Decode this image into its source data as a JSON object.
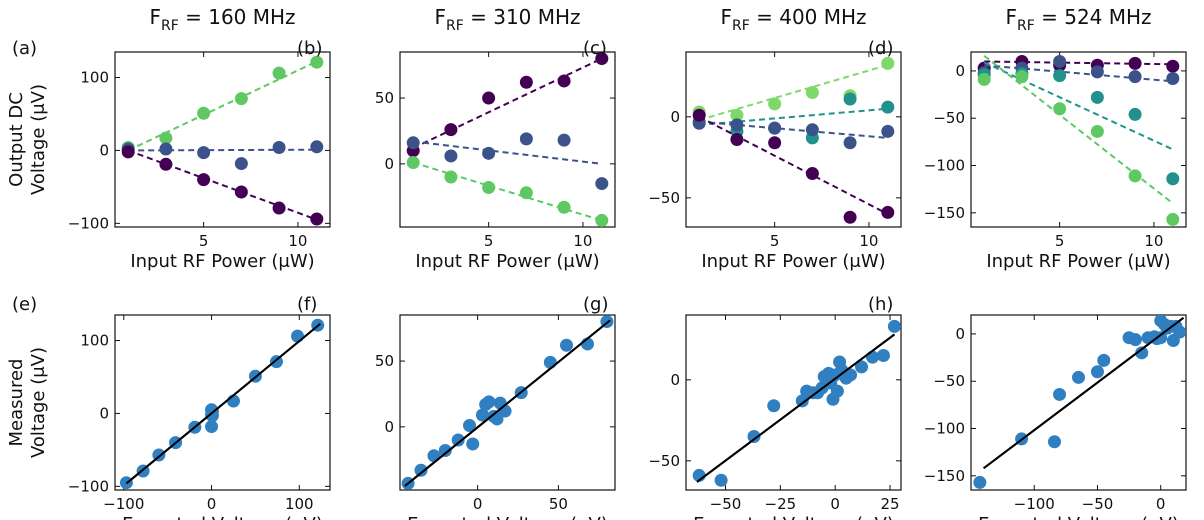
{
  "figure": {
    "colors": {
      "purple": "#440154",
      "navy": "#3b528b",
      "teal": "#21918c",
      "green": "#5ec962",
      "lime": "#7fd86a",
      "scatter": "#2f7fc1",
      "fit": "#000000"
    }
  },
  "chart_data": [
    {
      "type": "scatter",
      "panel": "(a)",
      "title_main": "F",
      "title_sub": "RF",
      "title_rest": " = 160 MHz",
      "xlabel": "Input RF Power (μW)",
      "ylabel_lines": [
        "Output DC",
        "Voltage (μV)"
      ],
      "xlim": [
        0.3,
        11.7
      ],
      "ylim": [
        -105,
        135
      ],
      "xticks": [
        5,
        10
      ],
      "xtick_labels": [
        "5",
        "10"
      ],
      "yticks": [
        -100,
        0,
        100
      ],
      "ytick_labels": [
        "−100",
        "0",
        "100"
      ],
      "x": [
        1,
        3,
        5,
        7,
        9,
        11
      ],
      "series": [
        {
          "color": "#5ec962",
          "values": [
            4,
            17,
            51,
            71,
            106,
            121
          ],
          "fit": [
            [
              1,
              0
            ],
            [
              11,
              122
            ]
          ]
        },
        {
          "color": "#3b528b",
          "values": [
            2,
            2,
            -3,
            -18,
            4,
            5
          ],
          "fit": [
            [
              1,
              0
            ],
            [
              11,
              1
            ]
          ]
        },
        {
          "color": "#440154",
          "values": [
            -2,
            -19,
            -40,
            -57,
            -79,
            -94
          ],
          "fit": [
            [
              1,
              0
            ],
            [
              11,
              -95
            ]
          ]
        }
      ]
    },
    {
      "type": "scatter",
      "panel": "(b)",
      "title_main": "F",
      "title_sub": "RF",
      "title_rest": " = 310 MHz",
      "xlabel": "Input RF Power (μW)",
      "ylabel_lines": [],
      "xlim": [
        0.3,
        11.7
      ],
      "ylim": [
        -48,
        85
      ],
      "xticks": [
        5,
        10
      ],
      "xtick_labels": [
        "5",
        "10"
      ],
      "yticks": [
        0,
        50
      ],
      "ytick_labels": [
        "0",
        "50"
      ],
      "x": [
        1,
        3,
        5,
        7,
        9,
        11
      ],
      "series": [
        {
          "color": "#440154",
          "values": [
            10,
            26,
            50,
            62,
            63,
            80
          ],
          "fit": [
            [
              1,
              12
            ],
            [
              11,
              80
            ]
          ]
        },
        {
          "color": "#3b528b",
          "values": [
            16,
            6,
            8,
            19,
            18,
            -15
          ],
          "fit": [
            [
              1,
              17
            ],
            [
              11,
              0
            ]
          ]
        },
        {
          "color": "#5ec962",
          "values": [
            1,
            -10,
            -18,
            -22,
            -33,
            -43
          ],
          "fit": [
            [
              1,
              1
            ],
            [
              11,
              -43
            ]
          ]
        }
      ]
    },
    {
      "type": "scatter",
      "panel": "(c)",
      "title_main": "F",
      "title_sub": "RF",
      "title_rest": " = 400 MHz",
      "xlabel": "Input RF Power (μW)",
      "ylabel_lines": [],
      "xlim": [
        0.3,
        11.7
      ],
      "ylim": [
        -68,
        40
      ],
      "xticks": [
        5,
        10
      ],
      "xtick_labels": [
        "5",
        "10"
      ],
      "yticks": [
        -50,
        0
      ],
      "ytick_labels": [
        "−50",
        "0"
      ],
      "x": [
        1,
        3,
        5,
        7,
        9,
        11
      ],
      "series": [
        {
          "color": "#7fd86a",
          "values": [
            3,
            1,
            8,
            15,
            13,
            33
          ],
          "fit": [
            [
              1,
              -2
            ],
            [
              11,
              32
            ]
          ]
        },
        {
          "color": "#21918c",
          "values": [
            -3,
            -9,
            -7,
            -13,
            11,
            6
          ],
          "fit": [
            [
              1,
              -5
            ],
            [
              11,
              5
            ]
          ]
        },
        {
          "color": "#3b528b",
          "values": [
            -4,
            -5,
            -7,
            -8,
            -16,
            -9
          ],
          "fit": [
            [
              1,
              -3
            ],
            [
              11,
              -13
            ]
          ]
        },
        {
          "color": "#440154",
          "values": [
            1,
            -14,
            -16,
            -35,
            -62,
            -59
          ],
          "fit": [
            [
              1,
              0
            ],
            [
              11,
              -60
            ]
          ]
        }
      ]
    },
    {
      "type": "scatter",
      "panel": "(d)",
      "title_main": "F",
      "title_sub": "RF",
      "title_rest": " = 524 MHz",
      "xlabel": "Input RF Power (μW)",
      "ylabel_lines": [],
      "xlim": [
        0.3,
        11.7
      ],
      "ylim": [
        -165,
        20
      ],
      "xticks": [
        5,
        10
      ],
      "xtick_labels": [
        "5",
        "10"
      ],
      "yticks": [
        -150,
        -100,
        -50,
        0
      ],
      "ytick_labels": [
        "−150",
        "−100",
        "−50",
        "0"
      ],
      "x": [
        1,
        3,
        5,
        7,
        9,
        11
      ],
      "series": [
        {
          "color": "#440154",
          "values": [
            3,
            10,
            6,
            6,
            8,
            5
          ],
          "fit": [
            [
              1,
              10
            ],
            [
              11,
              7
            ]
          ]
        },
        {
          "color": "#3b528b",
          "values": [
            -2,
            3,
            10,
            -1,
            -6,
            -8
          ],
          "fit": [
            [
              1,
              6
            ],
            [
              11,
              -11
            ]
          ]
        },
        {
          "color": "#21918c",
          "values": [
            -4,
            -3,
            -5,
            -28,
            -46,
            -114
          ],
          "fit": [
            [
              1,
              9
            ],
            [
              11,
              -83
            ]
          ]
        },
        {
          "color": "#5ec962",
          "values": [
            -9,
            -6,
            -40,
            -64,
            -111,
            -157
          ],
          "fit": [
            [
              1,
              16
            ],
            [
              11,
              -140
            ]
          ]
        }
      ]
    },
    {
      "type": "scatter",
      "panel": "(e)",
      "xlabel": "Expected Voltage (μV)",
      "ylabel_lines": [
        "Measured",
        "Voltage (μV)"
      ],
      "xlim": [
        -110,
        135
      ],
      "ylim": [
        -105,
        135
      ],
      "xticks": [
        -100,
        0,
        100
      ],
      "xtick_labels": [
        "−100",
        "0",
        "100"
      ],
      "yticks": [
        -100,
        0,
        100
      ],
      "ytick_labels": [
        "−100",
        "0",
        "100"
      ],
      "color": "#2f7fc1",
      "points": [
        [
          -97,
          -95
        ],
        [
          -78,
          -79
        ],
        [
          -60,
          -57
        ],
        [
          -41,
          -40
        ],
        [
          -19,
          -19
        ],
        [
          0,
          -2
        ],
        [
          0,
          5
        ],
        [
          1,
          3
        ],
        [
          0,
          -18
        ],
        [
          1,
          -3
        ],
        [
          25,
          17
        ],
        [
          50,
          51
        ],
        [
          74,
          71
        ],
        [
          98,
          106
        ],
        [
          121,
          121
        ]
      ],
      "fit": [
        [
          -97,
          -96
        ],
        [
          124,
          123
        ]
      ]
    },
    {
      "type": "scatter",
      "panel": "(f)",
      "xlabel": "Expected Voltage (μV)",
      "ylabel_lines": [],
      "xlim": [
        -48,
        85
      ],
      "ylim": [
        -48,
        85
      ],
      "xticks": [
        0,
        50
      ],
      "xtick_labels": [
        "0",
        "50"
      ],
      "yticks": [
        0,
        50
      ],
      "ytick_labels": [
        "0",
        "50"
      ],
      "color": "#2f7fc1",
      "points": [
        [
          -43,
          -43
        ],
        [
          -35,
          -33
        ],
        [
          -27,
          -22
        ],
        [
          -20,
          -18
        ],
        [
          -12,
          -10
        ],
        [
          -5,
          1
        ],
        [
          -3,
          -13
        ],
        [
          3,
          9
        ],
        [
          5,
          17
        ],
        [
          7,
          19
        ],
        [
          10,
          8
        ],
        [
          12,
          6
        ],
        [
          14,
          18
        ],
        [
          17,
          12
        ],
        [
          27,
          26
        ],
        [
          45,
          49
        ],
        [
          55,
          62
        ],
        [
          68,
          63
        ],
        [
          80,
          80
        ]
      ],
      "fit": [
        [
          -45,
          -45
        ],
        [
          82,
          81
        ]
      ]
    },
    {
      "type": "scatter",
      "panel": "(g)",
      "xlabel": "Expected Voltage (μV)",
      "ylabel_lines": [],
      "xlim": [
        -68,
        30
      ],
      "ylim": [
        -68,
        40
      ],
      "xticks": [
        -50,
        -25,
        0,
        25
      ],
      "xtick_labels": [
        "−50",
        "−25",
        "0",
        "25"
      ],
      "yticks": [
        -50,
        0
      ],
      "ytick_labels": [
        "−50",
        "0"
      ],
      "color": "#2f7fc1",
      "points": [
        [
          -62,
          -59
        ],
        [
          -52,
          -62
        ],
        [
          -37,
          -35
        ],
        [
          -28,
          -16
        ],
        [
          -15,
          -13
        ],
        [
          -13,
          -7
        ],
        [
          -10,
          -8
        ],
        [
          -8,
          -8
        ],
        [
          -6,
          -5
        ],
        [
          -5,
          2
        ],
        [
          -3,
          4
        ],
        [
          -2,
          -2
        ],
        [
          -1,
          -12
        ],
        [
          0,
          3
        ],
        [
          1,
          -7
        ],
        [
          2,
          11
        ],
        [
          3,
          6
        ],
        [
          5,
          1
        ],
        [
          7,
          3
        ],
        [
          12,
          8
        ],
        [
          17,
          14
        ],
        [
          22,
          15
        ],
        [
          27,
          33
        ]
      ],
      "fit": [
        [
          -63,
          -63
        ],
        [
          27,
          28
        ]
      ]
    },
    {
      "type": "scatter",
      "panel": "(h)",
      "xlabel": "Expected Voltage (μV)",
      "ylabel_lines": [],
      "xlim": [
        -150,
        20
      ],
      "ylim": [
        -165,
        20
      ],
      "xticks": [
        -100,
        -50,
        0
      ],
      "xtick_labels": [
        "−100",
        "−50",
        "0"
      ],
      "yticks": [
        -150,
        -100,
        -50,
        0
      ],
      "ytick_labels": [
        "−150",
        "−100",
        "−50",
        "0"
      ],
      "color": "#2f7fc1",
      "points": [
        [
          -143,
          -157
        ],
        [
          -110,
          -111
        ],
        [
          -84,
          -114
        ],
        [
          -80,
          -64
        ],
        [
          -65,
          -46
        ],
        [
          -50,
          -40
        ],
        [
          -45,
          -28
        ],
        [
          -25,
          -4
        ],
        [
          -20,
          -6
        ],
        [
          -15,
          -20
        ],
        [
          -10,
          -4
        ],
        [
          -5,
          -3
        ],
        [
          -3,
          -5
        ],
        [
          0,
          -4
        ],
        [
          0,
          14
        ],
        [
          3,
          10
        ],
        [
          5,
          6
        ],
        [
          8,
          8
        ],
        [
          10,
          -7
        ],
        [
          12,
          8
        ],
        [
          15,
          2
        ]
      ],
      "fit": [
        [
          -140,
          -142
        ],
        [
          18,
          17
        ]
      ]
    }
  ]
}
